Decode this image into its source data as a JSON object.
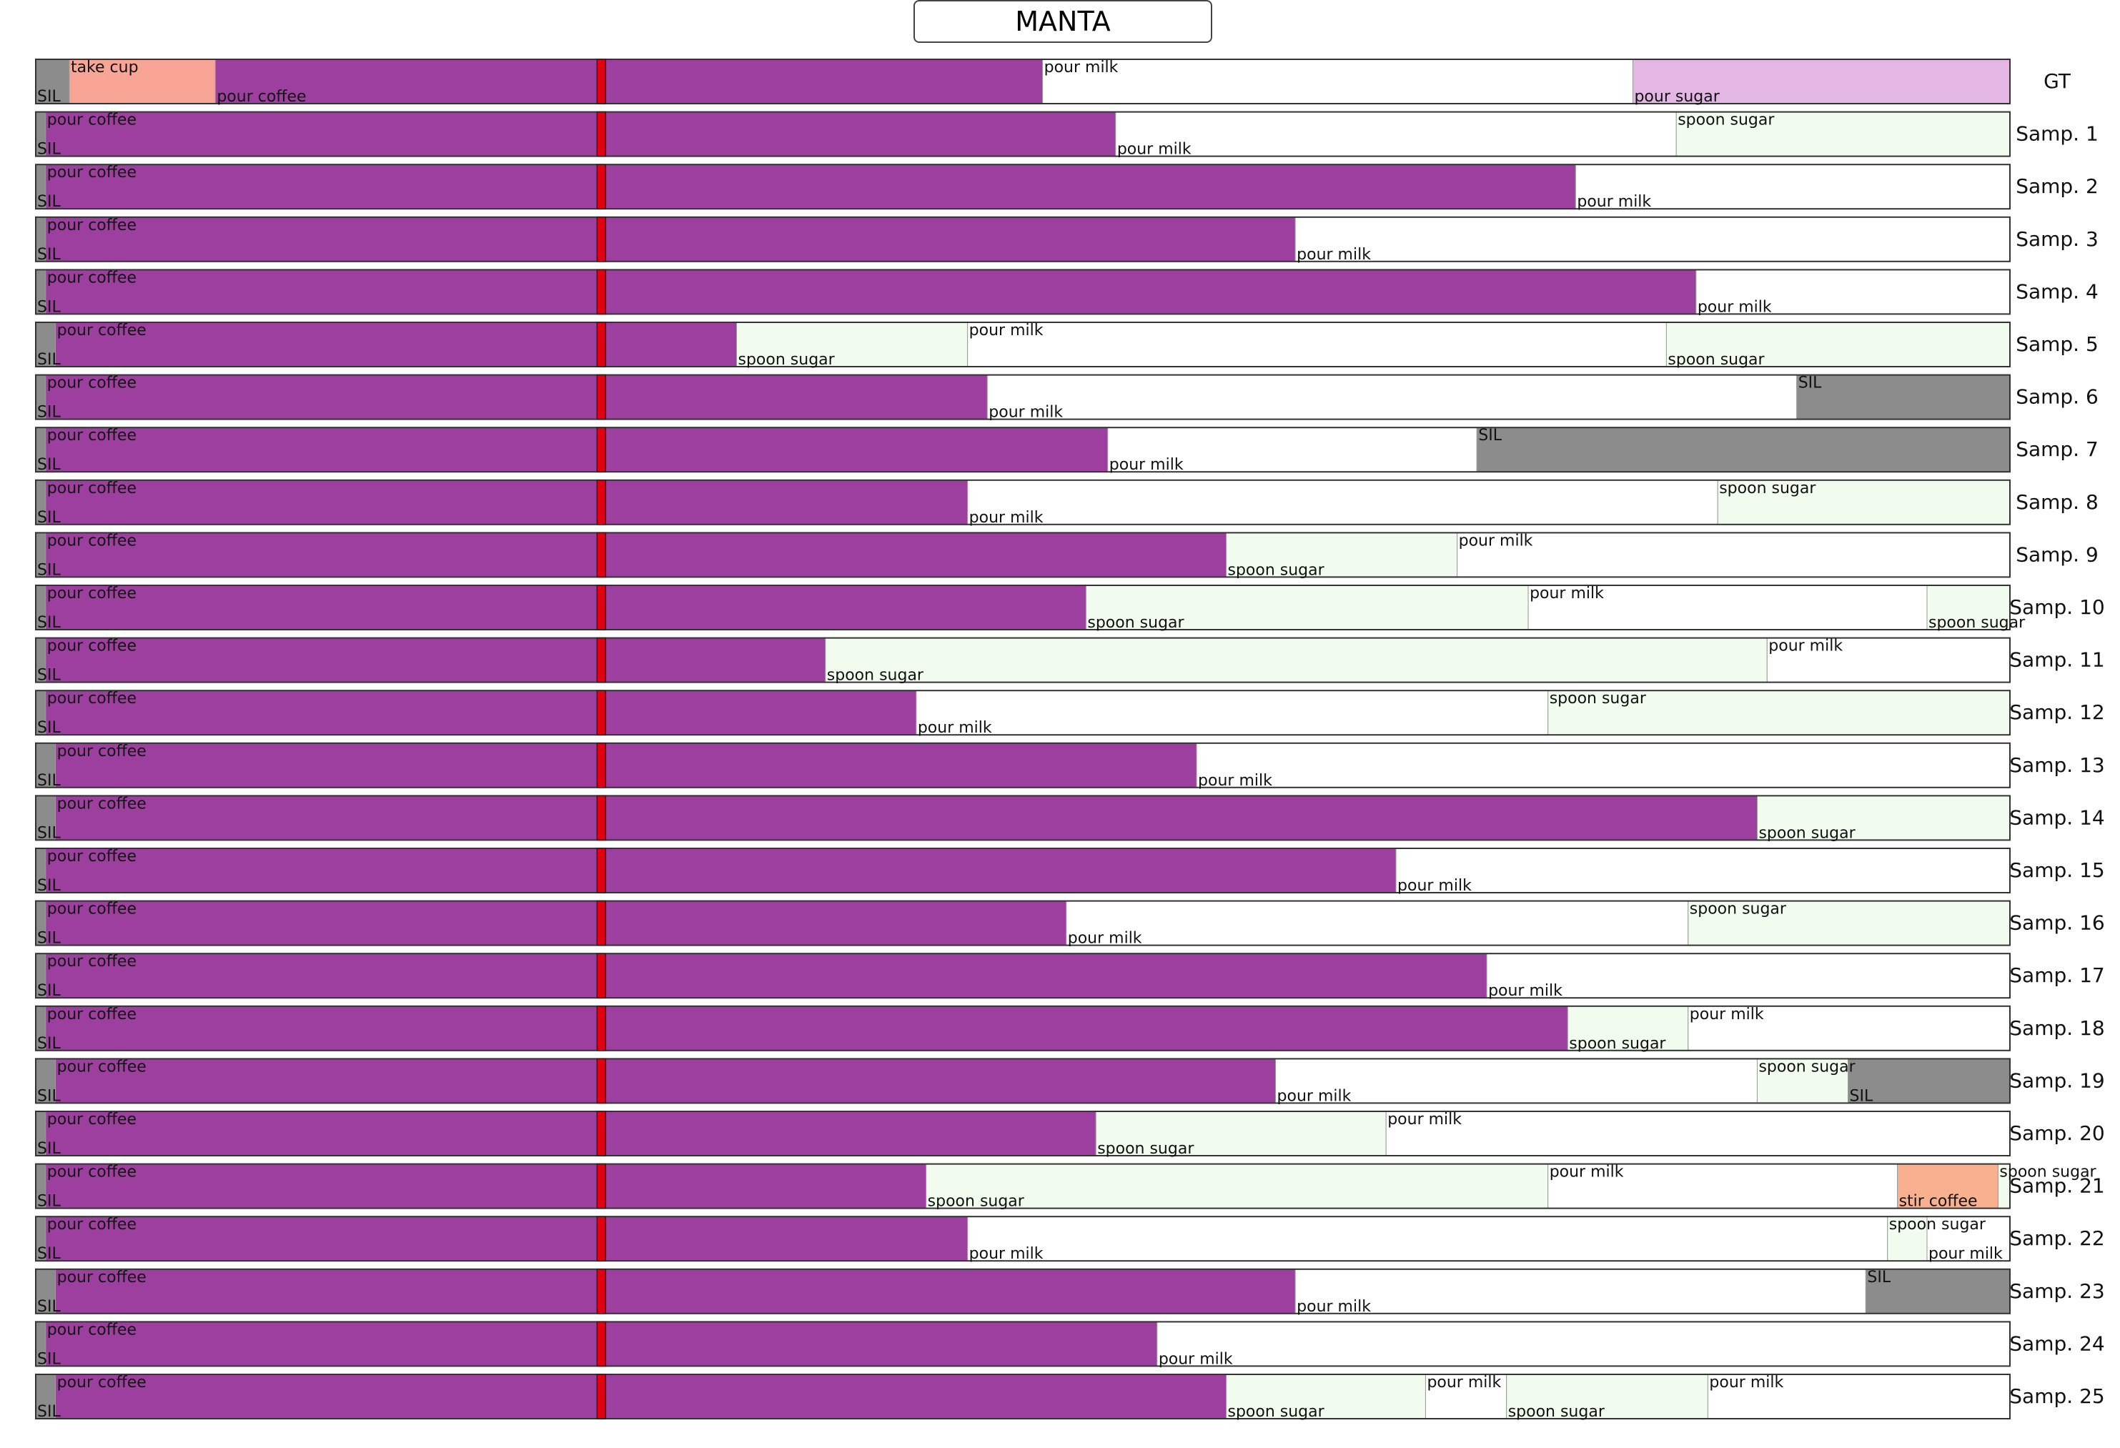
{
  "chart_data": {
    "type": "segmentation-timeline",
    "title": "MANTA",
    "duration": 1.0,
    "observed_until": 0.2865,
    "label_colors": {
      "SIL": "#8c8c8c",
      "take cup": "#f9a595",
      "pour coffee": "#9d3f9e",
      "pour milk": "#ffffff",
      "pour sugar": "#e4b6e3",
      "spoon sugar": "#f1fcef",
      "stir coffee": "#f9b08f"
    },
    "marker_color": "#e3000f",
    "rows": [
      {
        "name": "GT",
        "segments": [
          {
            "label": "SIL",
            "start": 0.0,
            "end": 0.017
          },
          {
            "label": "take cup",
            "start": 0.017,
            "end": 0.091
          },
          {
            "label": "pour coffee",
            "start": 0.091,
            "end": 0.51
          },
          {
            "label": "pour milk",
            "start": 0.51,
            "end": 0.809
          },
          {
            "label": "pour sugar",
            "start": 0.809,
            "end": 1.0
          }
        ]
      },
      {
        "name": "Samp. 1",
        "segments": [
          {
            "label": "SIL",
            "start": 0.0,
            "end": 0.005
          },
          {
            "label": "pour coffee",
            "start": 0.005,
            "end": 0.547
          },
          {
            "label": "pour milk",
            "start": 0.547,
            "end": 0.831
          },
          {
            "label": "spoon sugar",
            "start": 0.831,
            "end": 1.0
          }
        ]
      },
      {
        "name": "Samp. 2",
        "segments": [
          {
            "label": "SIL",
            "start": 0.0,
            "end": 0.005
          },
          {
            "label": "pour coffee",
            "start": 0.005,
            "end": 0.78
          },
          {
            "label": "pour milk",
            "start": 0.78,
            "end": 1.0
          }
        ]
      },
      {
        "name": "Samp. 3",
        "segments": [
          {
            "label": "SIL",
            "start": 0.0,
            "end": 0.005
          },
          {
            "label": "pour coffee",
            "start": 0.005,
            "end": 0.638
          },
          {
            "label": "pour milk",
            "start": 0.638,
            "end": 1.0
          }
        ]
      },
      {
        "name": "Samp. 4",
        "segments": [
          {
            "label": "SIL",
            "start": 0.0,
            "end": 0.005
          },
          {
            "label": "pour coffee",
            "start": 0.005,
            "end": 0.841
          },
          {
            "label": "pour milk",
            "start": 0.841,
            "end": 1.0
          }
        ]
      },
      {
        "name": "Samp. 5",
        "segments": [
          {
            "label": "SIL",
            "start": 0.0,
            "end": 0.01
          },
          {
            "label": "pour coffee",
            "start": 0.01,
            "end": 0.355
          },
          {
            "label": "spoon sugar",
            "start": 0.355,
            "end": 0.472
          },
          {
            "label": "pour milk",
            "start": 0.472,
            "end": 0.826
          },
          {
            "label": "spoon sugar",
            "start": 0.826,
            "end": 1.0
          }
        ]
      },
      {
        "name": "Samp. 6",
        "segments": [
          {
            "label": "SIL",
            "start": 0.0,
            "end": 0.005
          },
          {
            "label": "pour coffee",
            "start": 0.005,
            "end": 0.482
          },
          {
            "label": "pour milk",
            "start": 0.482,
            "end": 0.892
          },
          {
            "label": "SIL",
            "start": 0.892,
            "end": 1.0
          }
        ]
      },
      {
        "name": "Samp. 7",
        "segments": [
          {
            "label": "SIL",
            "start": 0.0,
            "end": 0.005
          },
          {
            "label": "pour coffee",
            "start": 0.005,
            "end": 0.543
          },
          {
            "label": "pour milk",
            "start": 0.543,
            "end": 0.73
          },
          {
            "label": "SIL",
            "start": 0.73,
            "end": 1.0
          }
        ]
      },
      {
        "name": "Samp. 8",
        "segments": [
          {
            "label": "SIL",
            "start": 0.0,
            "end": 0.005
          },
          {
            "label": "pour coffee",
            "start": 0.005,
            "end": 0.472
          },
          {
            "label": "pour milk",
            "start": 0.472,
            "end": 0.852
          },
          {
            "label": "spoon sugar",
            "start": 0.852,
            "end": 1.0
          }
        ]
      },
      {
        "name": "Samp. 9",
        "segments": [
          {
            "label": "SIL",
            "start": 0.0,
            "end": 0.005
          },
          {
            "label": "pour coffee",
            "start": 0.005,
            "end": 0.603
          },
          {
            "label": "spoon sugar",
            "start": 0.603,
            "end": 0.72
          },
          {
            "label": "pour milk",
            "start": 0.72,
            "end": 1.0
          }
        ]
      },
      {
        "name": "Samp. 10",
        "segments": [
          {
            "label": "SIL",
            "start": 0.0,
            "end": 0.005
          },
          {
            "label": "pour coffee",
            "start": 0.005,
            "end": 0.532
          },
          {
            "label": "spoon sugar",
            "start": 0.532,
            "end": 0.756
          },
          {
            "label": "pour milk",
            "start": 0.756,
            "end": 0.958
          },
          {
            "label": "spoon sugar",
            "start": 0.958,
            "end": 1.0
          }
        ]
      },
      {
        "name": "Samp. 11",
        "segments": [
          {
            "label": "SIL",
            "start": 0.0,
            "end": 0.005
          },
          {
            "label": "pour coffee",
            "start": 0.005,
            "end": 0.4
          },
          {
            "label": "spoon sugar",
            "start": 0.4,
            "end": 0.877
          },
          {
            "label": "pour milk",
            "start": 0.877,
            "end": 1.0
          }
        ]
      },
      {
        "name": "Samp. 12",
        "segments": [
          {
            "label": "SIL",
            "start": 0.0,
            "end": 0.005
          },
          {
            "label": "pour coffee",
            "start": 0.005,
            "end": 0.446
          },
          {
            "label": "pour milk",
            "start": 0.446,
            "end": 0.766
          },
          {
            "label": "spoon sugar",
            "start": 0.766,
            "end": 1.0
          }
        ]
      },
      {
        "name": "Samp. 13",
        "segments": [
          {
            "label": "SIL",
            "start": 0.0,
            "end": 0.01
          },
          {
            "label": "pour coffee",
            "start": 0.01,
            "end": 0.588
          },
          {
            "label": "pour milk",
            "start": 0.588,
            "end": 1.0
          }
        ]
      },
      {
        "name": "Samp. 14",
        "segments": [
          {
            "label": "SIL",
            "start": 0.0,
            "end": 0.01
          },
          {
            "label": "pour coffee",
            "start": 0.01,
            "end": 0.872
          },
          {
            "label": "spoon sugar",
            "start": 0.872,
            "end": 1.0
          }
        ]
      },
      {
        "name": "Samp. 15",
        "segments": [
          {
            "label": "SIL",
            "start": 0.0,
            "end": 0.005
          },
          {
            "label": "pour coffee",
            "start": 0.005,
            "end": 0.689
          },
          {
            "label": "pour milk",
            "start": 0.689,
            "end": 1.0
          }
        ]
      },
      {
        "name": "Samp. 16",
        "segments": [
          {
            "label": "SIL",
            "start": 0.0,
            "end": 0.005
          },
          {
            "label": "pour coffee",
            "start": 0.005,
            "end": 0.522
          },
          {
            "label": "pour milk",
            "start": 0.522,
            "end": 0.837
          },
          {
            "label": "spoon sugar",
            "start": 0.837,
            "end": 1.0
          }
        ]
      },
      {
        "name": "Samp. 17",
        "segments": [
          {
            "label": "SIL",
            "start": 0.0,
            "end": 0.005
          },
          {
            "label": "pour coffee",
            "start": 0.005,
            "end": 0.735
          },
          {
            "label": "pour milk",
            "start": 0.735,
            "end": 1.0
          }
        ]
      },
      {
        "name": "Samp. 18",
        "segments": [
          {
            "label": "SIL",
            "start": 0.0,
            "end": 0.005
          },
          {
            "label": "pour coffee",
            "start": 0.005,
            "end": 0.776
          },
          {
            "label": "spoon sugar",
            "start": 0.776,
            "end": 0.837
          },
          {
            "label": "pour milk",
            "start": 0.837,
            "end": 1.0
          }
        ]
      },
      {
        "name": "Samp. 19",
        "segments": [
          {
            "label": "SIL",
            "start": 0.0,
            "end": 0.01
          },
          {
            "label": "pour coffee",
            "start": 0.01,
            "end": 0.628
          },
          {
            "label": "pour milk",
            "start": 0.628,
            "end": 0.872
          },
          {
            "label": "spoon sugar",
            "start": 0.872,
            "end": 0.918
          },
          {
            "label": "SIL",
            "start": 0.918,
            "end": 1.0
          }
        ]
      },
      {
        "name": "Samp. 20",
        "segments": [
          {
            "label": "SIL",
            "start": 0.0,
            "end": 0.005
          },
          {
            "label": "pour coffee",
            "start": 0.005,
            "end": 0.537
          },
          {
            "label": "spoon sugar",
            "start": 0.537,
            "end": 0.684
          },
          {
            "label": "pour milk",
            "start": 0.684,
            "end": 1.0
          }
        ]
      },
      {
        "name": "Samp. 21",
        "segments": [
          {
            "label": "SIL",
            "start": 0.0,
            "end": 0.005
          },
          {
            "label": "pour coffee",
            "start": 0.005,
            "end": 0.451
          },
          {
            "label": "spoon sugar",
            "start": 0.451,
            "end": 0.766
          },
          {
            "label": "pour milk",
            "start": 0.766,
            "end": 0.943
          },
          {
            "label": "stir coffee",
            "start": 0.943,
            "end": 0.994
          },
          {
            "label": "spoon sugar",
            "start": 0.994,
            "end": 1.0
          }
        ]
      },
      {
        "name": "Samp. 22",
        "segments": [
          {
            "label": "SIL",
            "start": 0.0,
            "end": 0.005
          },
          {
            "label": "pour coffee",
            "start": 0.005,
            "end": 0.472
          },
          {
            "label": "pour milk",
            "start": 0.472,
            "end": 0.938
          },
          {
            "label": "spoon sugar",
            "start": 0.938,
            "end": 0.958
          },
          {
            "label": "pour milk",
            "start": 0.958,
            "end": 1.0
          }
        ]
      },
      {
        "name": "Samp. 23",
        "segments": [
          {
            "label": "SIL",
            "start": 0.0,
            "end": 0.01
          },
          {
            "label": "pour coffee",
            "start": 0.01,
            "end": 0.638
          },
          {
            "label": "pour milk",
            "start": 0.638,
            "end": 0.927
          },
          {
            "label": "SIL",
            "start": 0.927,
            "end": 1.0
          }
        ]
      },
      {
        "name": "Samp. 24",
        "segments": [
          {
            "label": "SIL",
            "start": 0.0,
            "end": 0.005
          },
          {
            "label": "pour coffee",
            "start": 0.005,
            "end": 0.568
          },
          {
            "label": "pour milk",
            "start": 0.568,
            "end": 1.0
          }
        ]
      },
      {
        "name": "Samp. 25",
        "segments": [
          {
            "label": "SIL",
            "start": 0.0,
            "end": 0.01
          },
          {
            "label": "pour coffee",
            "start": 0.01,
            "end": 0.603
          },
          {
            "label": "spoon sugar",
            "start": 0.603,
            "end": 0.704
          },
          {
            "label": "pour milk",
            "start": 0.704,
            "end": 0.745
          },
          {
            "label": "spoon sugar",
            "start": 0.745,
            "end": 0.847
          },
          {
            "label": "pour milk",
            "start": 0.847,
            "end": 1.0
          }
        ]
      }
    ]
  }
}
